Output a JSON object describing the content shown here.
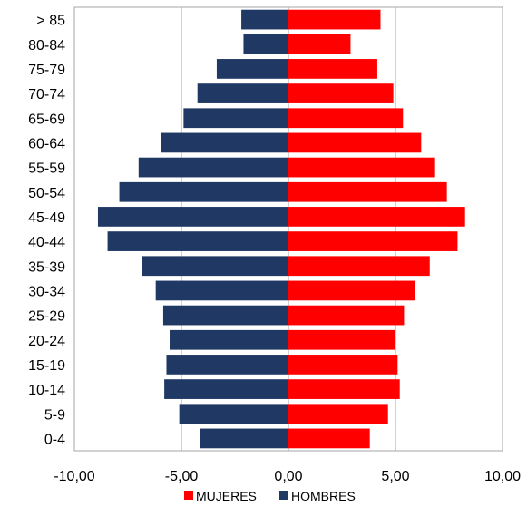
{
  "chart_data": {
    "type": "bar",
    "orientation": "horizontal",
    "layout": "population-pyramid",
    "categories": [
      "0-4",
      "5-9",
      "10-14",
      "15-19",
      "20-24",
      "25-29",
      "30-34",
      "35-39",
      "40-44",
      "45-49",
      "50-54",
      "55-59",
      "60-64",
      "65-69",
      "70-74",
      "75-79",
      "80-84",
      "> 85"
    ],
    "series": [
      {
        "name": "MUJERES",
        "color": "#ff0000",
        "values": [
          3.8,
          4.65,
          5.2,
          5.1,
          5.0,
          5.4,
          5.9,
          6.6,
          7.9,
          8.25,
          7.4,
          6.85,
          6.2,
          5.35,
          4.9,
          4.15,
          2.9,
          4.3
        ]
      },
      {
        "name": "HOMBRES",
        "color": "#1f3864",
        "values": [
          -4.15,
          -5.1,
          -5.8,
          -5.7,
          -5.55,
          -5.85,
          -6.2,
          -6.85,
          -8.45,
          -8.9,
          -7.9,
          -7.0,
          -5.95,
          -4.9,
          -4.25,
          -3.35,
          -2.1,
          -2.2
        ]
      }
    ],
    "xlim": [
      -10,
      10
    ],
    "xticks": [
      "-10,00",
      "-5,00",
      "0,00",
      "5,00",
      "10,00"
    ],
    "xtick_values": [
      -10,
      -5,
      0,
      5,
      10
    ],
    "grid": "vertical",
    "legend": "bottom",
    "title": "",
    "xlabel": "",
    "ylabel": ""
  }
}
